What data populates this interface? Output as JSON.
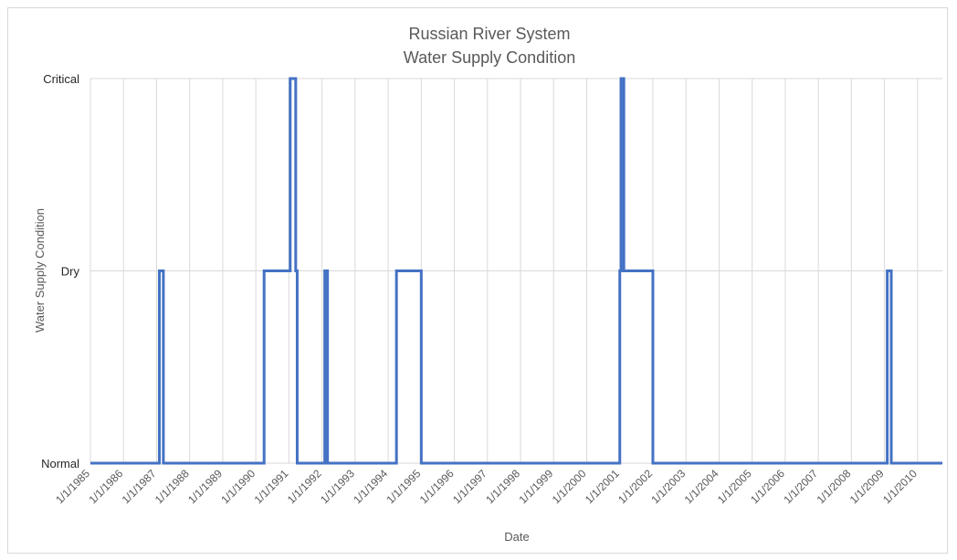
{
  "chart_data": {
    "type": "line",
    "title_lines": [
      "Russian River System",
      "Water Supply Condition"
    ],
    "xlabel": "Date",
    "ylabel": "Water Supply Condition",
    "x_ticks": [
      "1/1/1985",
      "1/1/1986",
      "1/1/1987",
      "1/1/1988",
      "1/1/1989",
      "1/1/1990",
      "1/1/1991",
      "1/1/1992",
      "1/1/1993",
      "1/1/1994",
      "1/1/1995",
      "1/1/1996",
      "1/1/1997",
      "1/1/1998",
      "1/1/1999",
      "1/1/2000",
      "1/1/2001",
      "1/1/2002",
      "1/1/2003",
      "1/1/2004",
      "1/1/2005",
      "1/1/2006",
      "1/1/2007",
      "1/1/2008",
      "1/1/2009",
      "1/1/2010"
    ],
    "y_categories": [
      "Normal",
      "Dry",
      "Critical"
    ],
    "xlim": [
      "1/1/1985",
      "10/1/2010"
    ],
    "grid": "vertical and horizontal",
    "line_color": "#4472c4",
    "series": [
      {
        "steps": [
          {
            "date": "1/1/1985",
            "level": "Normal"
          },
          {
            "date": "2/1/1987",
            "level": "Dry"
          },
          {
            "date": "3/15/1987",
            "level": "Normal"
          },
          {
            "date": "4/1/1990",
            "level": "Dry"
          },
          {
            "date": "1/15/1991",
            "level": "Critical"
          },
          {
            "date": "3/15/1991",
            "level": "Dry"
          },
          {
            "date": "4/1/1991",
            "level": "Normal"
          },
          {
            "date": "2/1/1992",
            "level": "Dry"
          },
          {
            "date": "3/1/1992",
            "level": "Normal"
          },
          {
            "date": "4/1/1994",
            "level": "Dry"
          },
          {
            "date": "1/1/1995",
            "level": "Normal"
          },
          {
            "date": "1/1/2001",
            "level": "Dry"
          },
          {
            "date": "1/15/2001",
            "level": "Critical"
          },
          {
            "date": "2/15/2001",
            "level": "Dry"
          },
          {
            "date": "1/1/2002",
            "level": "Normal"
          },
          {
            "date": "2/1/2009",
            "level": "Dry"
          },
          {
            "date": "3/15/2009",
            "level": "Normal"
          },
          {
            "date": "10/1/2010",
            "level": "Normal"
          }
        ]
      }
    ]
  }
}
